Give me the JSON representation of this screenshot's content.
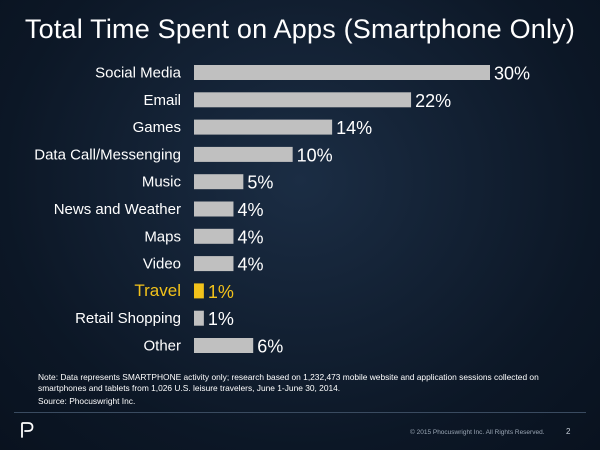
{
  "title": "Total Time Spent on Apps (Smartphone Only)",
  "colors": {
    "background": "#0f1d2e",
    "bar": "#c0c0c0",
    "highlight": "#f2c21b",
    "text": "#ffffff"
  },
  "chart_data": {
    "type": "bar",
    "orientation": "horizontal",
    "title": "Total Time Spent on Apps (Smartphone Only)",
    "categories": [
      "Social Media",
      "Email",
      "Games",
      "Data Call/Messenging",
      "Music",
      "News and Weather",
      "Maps",
      "Video",
      "Travel",
      "Retail Shopping",
      "Other"
    ],
    "values": [
      30,
      22,
      14,
      10,
      5,
      4,
      4,
      4,
      1,
      1,
      6
    ],
    "value_labels": [
      "30%",
      "22%",
      "14%",
      "10%",
      "5%",
      "4%",
      "4%",
      "4%",
      "1%",
      "1%",
      "6%"
    ],
    "unit": "%",
    "highlighted_category": "Travel",
    "xlim": [
      0,
      30
    ],
    "grid": false,
    "legend": false
  },
  "footnote": {
    "note": "Note: Data represents SMARTPHONE activity only; research based on 1,232,473 mobile website and application sessions collected on smartphones and tablets from 1,026 U.S. leisure travelers, June 1-June 30, 2014.",
    "source": "Source: Phocuswright Inc."
  },
  "footer": {
    "copyright": "© 2015 Phocuswright Inc. All Rights Reserved.",
    "page_number": "2"
  }
}
